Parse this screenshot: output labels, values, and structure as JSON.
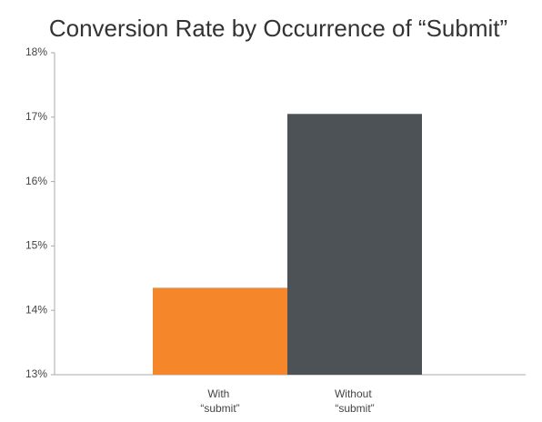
{
  "chart_data": {
    "type": "bar",
    "title": "Conversion Rate by Occurrence of “Submit”",
    "categories": [
      "With “submit”",
      "Without “submit”"
    ],
    "values": [
      14.35,
      17.05
    ],
    "colors": [
      "#f5862a",
      "#4d5257"
    ],
    "ylim": [
      13,
      18
    ],
    "yticks": [
      {
        "value": 13,
        "label": "13%"
      },
      {
        "value": 14,
        "label": "14%"
      },
      {
        "value": 15,
        "label": "15%"
      },
      {
        "value": 16,
        "label": "16%"
      },
      {
        "value": 17,
        "label": "17%"
      },
      {
        "value": 18,
        "label": "18%"
      }
    ],
    "grid": false
  }
}
